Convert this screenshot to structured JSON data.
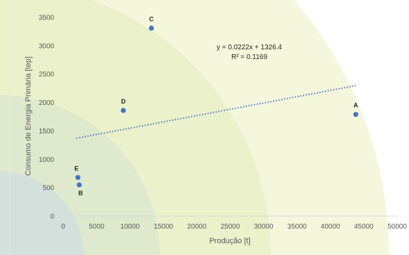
{
  "chart_data": {
    "type": "scatter",
    "xlabel": "Produção [t]",
    "ylabel": "Consumo de Energia Primária [tep]",
    "xlim": [
      0,
      50000
    ],
    "ylim": [
      0,
      3500
    ],
    "xticks": [
      "0",
      "5000",
      "10000",
      "15000",
      "20000",
      "25000",
      "30000",
      "35000",
      "40000",
      "45000",
      "50000"
    ],
    "yticks": [
      "0",
      "500",
      "1000",
      "1500",
      "2000",
      "2500",
      "3000",
      "3500"
    ],
    "points": [
      {
        "label": "A",
        "x": 43800,
        "y": 1790
      },
      {
        "label": "B",
        "x": 2400,
        "y": 550
      },
      {
        "label": "C",
        "x": 13200,
        "y": 3310
      },
      {
        "label": "D",
        "x": 9000,
        "y": 1860
      },
      {
        "label": "E",
        "x": 2200,
        "y": 680
      }
    ],
    "trendline": {
      "type": "linear",
      "slope": 0.0222,
      "intercept": 1326.4,
      "x_range": [
        2000,
        43800
      ],
      "equation": "y = 0.0222x + 1326.4",
      "r_squared": "R² = 0.1169"
    },
    "grid": false,
    "legend": "none",
    "colors": {
      "points": "#4472c4",
      "trendline": "#4472c4"
    }
  }
}
